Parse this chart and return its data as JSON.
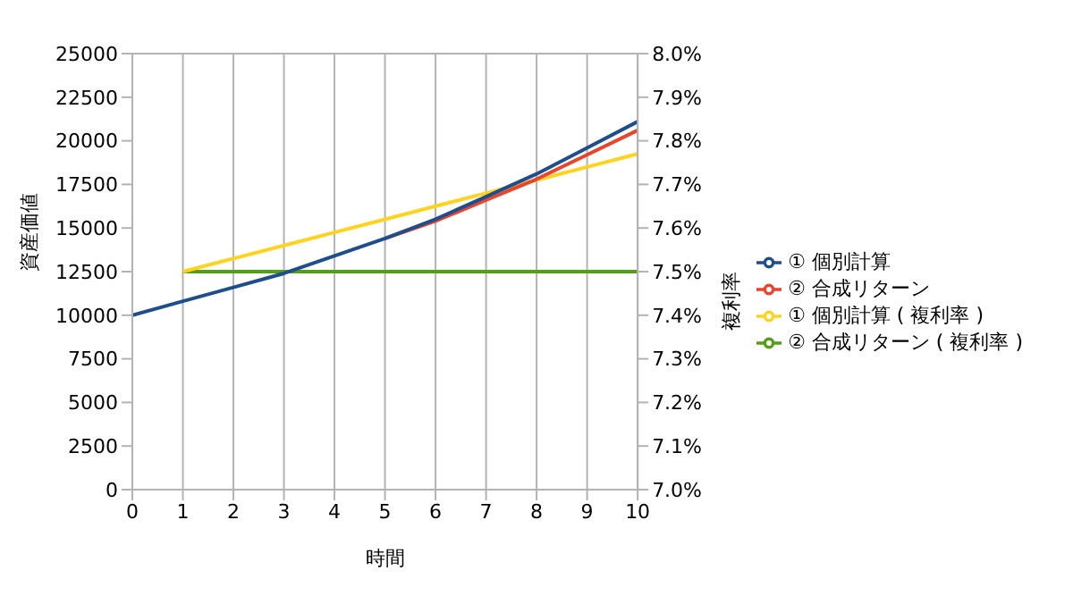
{
  "chart_data": {
    "type": "line",
    "xlabel": "時間",
    "ylabel": "資産価値",
    "y2label": "複利率",
    "x": [
      0,
      1,
      2,
      3,
      4,
      5,
      6,
      7,
      8,
      9,
      10
    ],
    "series": [
      {
        "name": "① 個別計算",
        "color": "#1f4e8c",
        "values": [
          10000,
          10800,
          11600,
          12400,
          13400,
          14400,
          15500,
          16800,
          18100,
          19600,
          21100
        ]
      },
      {
        "name": "② 合成リターン",
        "color": "#e8452c",
        "values": [
          null,
          null,
          null,
          null,
          null,
          14400,
          15400,
          16600,
          17800,
          19200,
          20600
        ]
      },
      {
        "name": "① 個別計算 ( 複利率 )",
        "color": "#ffd320",
        "axis": "y2",
        "values": [
          null,
          7.5,
          7.53,
          7.56,
          7.59,
          7.62,
          7.65,
          7.68,
          7.71,
          7.74,
          7.77
        ]
      },
      {
        "name": "② 合成リターン ( 複利率 )",
        "color": "#579d1c",
        "axis": "y2",
        "values": [
          null,
          7.5,
          7.5,
          7.5,
          7.5,
          7.5,
          7.5,
          7.5,
          7.5,
          7.5,
          7.5
        ]
      }
    ],
    "xlim": [
      0,
      10
    ],
    "xticks": [
      0,
      1,
      2,
      3,
      4,
      5,
      6,
      7,
      8,
      9,
      10
    ],
    "ylim": [
      0,
      25000
    ],
    "yticks": [
      0,
      2500,
      5000,
      7500,
      10000,
      12500,
      15000,
      17500,
      20000,
      22500,
      25000
    ],
    "y2lim": [
      7.0,
      8.0
    ],
    "y2ticks": [
      {
        "value": 7.0,
        "label": "7.0%"
      },
      {
        "value": 7.1,
        "label": "7.1%"
      },
      {
        "value": 7.2,
        "label": "7.2%"
      },
      {
        "value": 7.3,
        "label": "7.3%"
      },
      {
        "value": 7.4,
        "label": "7.4%"
      },
      {
        "value": 7.5,
        "label": "7.5%"
      },
      {
        "value": 7.6,
        "label": "7.6%"
      },
      {
        "value": 7.7,
        "label": "7.7%"
      },
      {
        "value": 7.8,
        "label": "7.8%"
      },
      {
        "value": 7.9,
        "label": "7.9%"
      },
      {
        "value": 8.0,
        "label": "8.0%"
      }
    ],
    "grid": true,
    "legend": "right",
    "marker": "none",
    "line_style": "solid"
  }
}
